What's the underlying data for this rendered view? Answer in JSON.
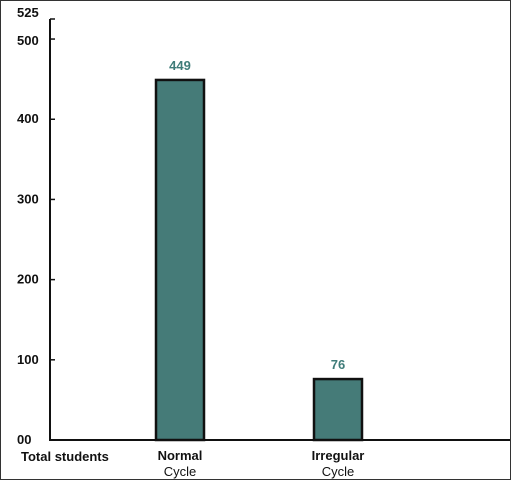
{
  "chart_data": {
    "type": "bar",
    "title": "",
    "xlabel": "",
    "ylabel": "",
    "row_label": "Total students",
    "categories": [
      {
        "line1": "Normal",
        "line2": "Cycle"
      },
      {
        "line1": "Irregular",
        "line2": "Cycle"
      }
    ],
    "values": [
      449,
      76
    ],
    "value_labels": [
      "449",
      "76"
    ],
    "ylim": [
      0,
      525
    ],
    "yticks": [
      {
        "value": 0,
        "label": "00"
      },
      {
        "value": 100,
        "label": "100"
      },
      {
        "value": 200,
        "label": "200"
      },
      {
        "value": 300,
        "label": "300"
      },
      {
        "value": 400,
        "label": "400"
      },
      {
        "value": 500,
        "label": "500"
      },
      {
        "value": 525,
        "label": "525"
      }
    ],
    "grid": false,
    "legend": "none",
    "colors": {
      "bar_fill": "#457b78",
      "bar_stroke": "#111111",
      "data_label": "#3f7c79",
      "axis": "#111111"
    }
  }
}
